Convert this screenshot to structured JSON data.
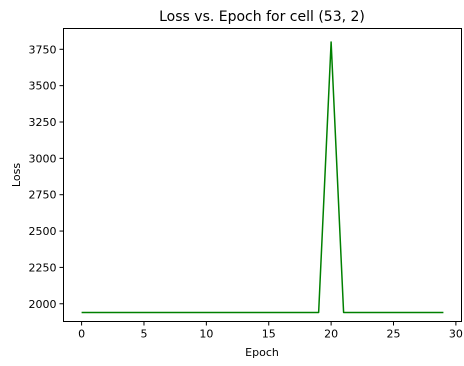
{
  "chart_data": {
    "type": "line",
    "title": "Loss vs. Epoch for cell (53, 2)",
    "xlabel": "Epoch",
    "ylabel": "Loss",
    "xlim": [
      -1.45,
      30.45
    ],
    "ylim": [
      1878,
      3893
    ],
    "xticks": [
      0,
      5,
      10,
      15,
      20,
      25,
      30
    ],
    "yticks": [
      2000,
      2250,
      2500,
      2750,
      3000,
      3250,
      3500,
      3750
    ],
    "xtick_labels": [
      "0",
      "5",
      "10",
      "15",
      "20",
      "25",
      "30"
    ],
    "ytick_labels": [
      "2000",
      "2250",
      "2500",
      "2750",
      "3000",
      "3250",
      "3500",
      "3750"
    ],
    "grid": false,
    "legend": "none",
    "series": [
      {
        "color": "#008000",
        "x": [
          0,
          1,
          2,
          3,
          4,
          5,
          6,
          7,
          8,
          9,
          10,
          11,
          12,
          13,
          14,
          15,
          16,
          17,
          18,
          19,
          20,
          21,
          22,
          23,
          24,
          25,
          26,
          27,
          28,
          29
        ],
        "y": [
          1940,
          1940,
          1940,
          1940,
          1940,
          1940,
          1940,
          1940,
          1940,
          1940,
          1940,
          1940,
          1940,
          1940,
          1940,
          1940,
          1940,
          1940,
          1940,
          1940,
          3800,
          1940,
          1940,
          1940,
          1940,
          1940,
          1940,
          1940,
          1940,
          1940
        ]
      }
    ]
  }
}
